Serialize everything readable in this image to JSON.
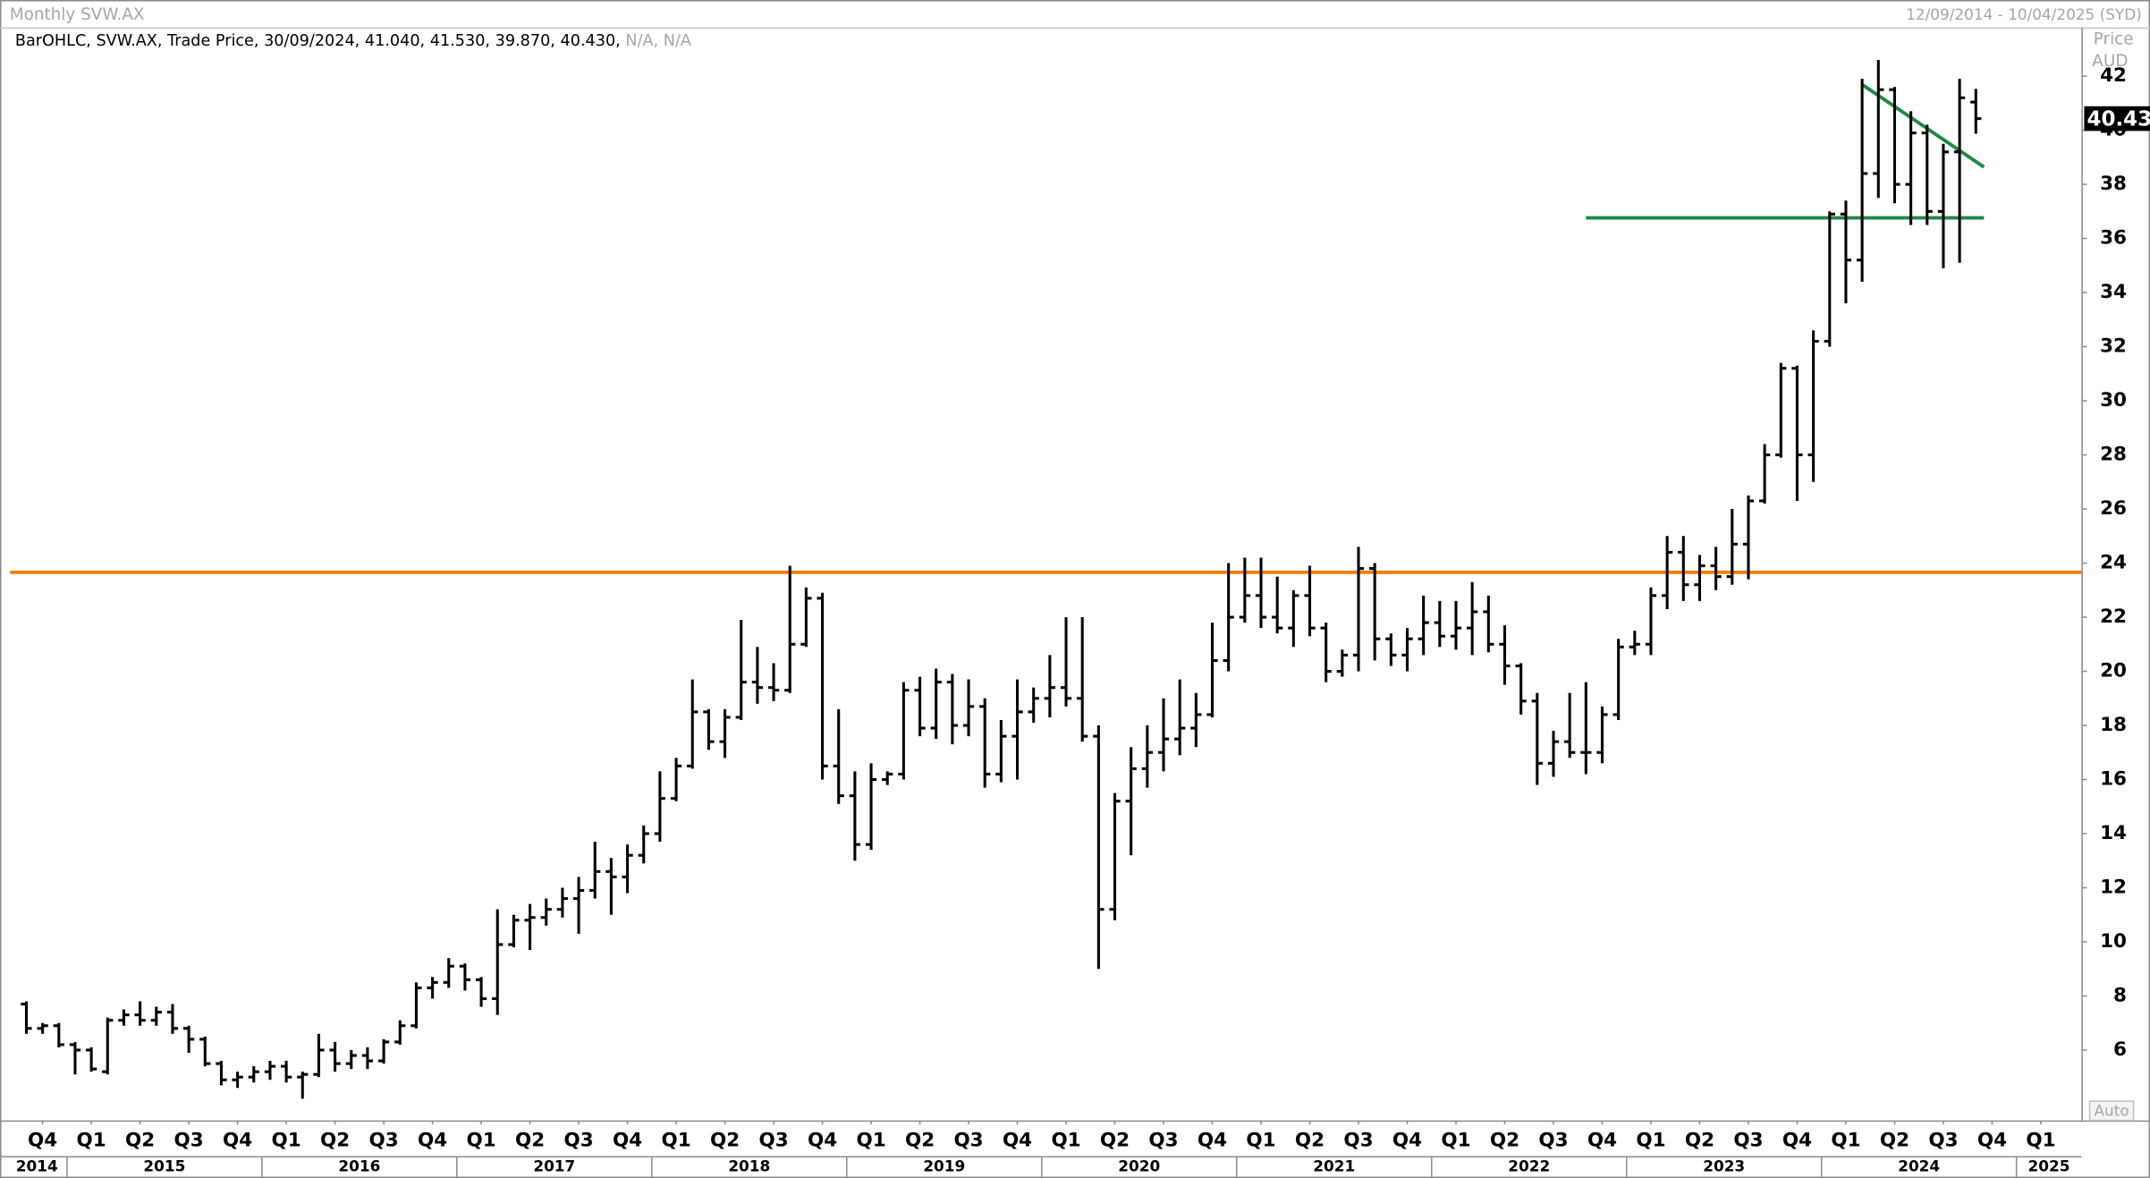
{
  "chart_data": {
    "type": "ohlc",
    "title": "Monthly SVW.AX",
    "date_range": "12/09/2014 - 10/04/2025 (SYD)",
    "legend_text": "BarOHLC, SVW.AX, Trade Price, 30/09/2024, 41.040, 41.530, 39.870, 40.430,",
    "legend_na": "N/A, N/A",
    "y_axis_label": "Price",
    "y_axis_unit": "AUD",
    "last_price_label": "40.43",
    "auto_button": "Auto",
    "color": "#000000",
    "grid": false,
    "xlim": [
      -1.2,
      126.5
    ],
    "ylim": [
      3.4,
      43.8
    ],
    "yticks": [
      6,
      8,
      10,
      12,
      14,
      16,
      18,
      20,
      22,
      24,
      26,
      28,
      30,
      32,
      34,
      36,
      38,
      40,
      42
    ],
    "xticks": [
      {
        "value": 1,
        "label": "Q4"
      },
      {
        "value": 4,
        "label": "Q1"
      },
      {
        "value": 7,
        "label": "Q2"
      },
      {
        "value": 10,
        "label": "Q3"
      },
      {
        "value": 13,
        "label": "Q4"
      },
      {
        "value": 16,
        "label": "Q1"
      },
      {
        "value": 19,
        "label": "Q2"
      },
      {
        "value": 22,
        "label": "Q3"
      },
      {
        "value": 25,
        "label": "Q4"
      },
      {
        "value": 28,
        "label": "Q1"
      },
      {
        "value": 31,
        "label": "Q2"
      },
      {
        "value": 34,
        "label": "Q3"
      },
      {
        "value": 37,
        "label": "Q4"
      },
      {
        "value": 40,
        "label": "Q1"
      },
      {
        "value": 43,
        "label": "Q2"
      },
      {
        "value": 46,
        "label": "Q3"
      },
      {
        "value": 49,
        "label": "Q4"
      },
      {
        "value": 52,
        "label": "Q1"
      },
      {
        "value": 55,
        "label": "Q2"
      },
      {
        "value": 58,
        "label": "Q3"
      },
      {
        "value": 61,
        "label": "Q4"
      },
      {
        "value": 64,
        "label": "Q1"
      },
      {
        "value": 67,
        "label": "Q2"
      },
      {
        "value": 70,
        "label": "Q3"
      },
      {
        "value": 73,
        "label": "Q4"
      },
      {
        "value": 76,
        "label": "Q1"
      },
      {
        "value": 79,
        "label": "Q2"
      },
      {
        "value": 82,
        "label": "Q3"
      },
      {
        "value": 85,
        "label": "Q4"
      },
      {
        "value": 88,
        "label": "Q1"
      },
      {
        "value": 91,
        "label": "Q2"
      },
      {
        "value": 94,
        "label": "Q3"
      },
      {
        "value": 97,
        "label": "Q4"
      },
      {
        "value": 100,
        "label": "Q1"
      },
      {
        "value": 103,
        "label": "Q2"
      },
      {
        "value": 106,
        "label": "Q3"
      },
      {
        "value": 109,
        "label": "Q4"
      },
      {
        "value": 112,
        "label": "Q1"
      },
      {
        "value": 115,
        "label": "Q2"
      },
      {
        "value": 118,
        "label": "Q3"
      },
      {
        "value": 121,
        "label": "Q4"
      },
      {
        "value": 124,
        "label": "Q1"
      }
    ],
    "year_ticks": [
      {
        "value": -9,
        "label": "2014"
      },
      {
        "value": 3,
        "label": "2015"
      },
      {
        "value": 15,
        "label": "2016"
      },
      {
        "value": 27,
        "label": "2017"
      },
      {
        "value": 39,
        "label": "2018"
      },
      {
        "value": 51,
        "label": "2019"
      },
      {
        "value": 63,
        "label": "2020"
      },
      {
        "value": 75,
        "label": "2021"
      },
      {
        "value": 87,
        "label": "2022"
      },
      {
        "value": 99,
        "label": "2023"
      },
      {
        "value": 111,
        "label": "2024"
      },
      {
        "value": 123,
        "label": "2025"
      }
    ],
    "open": [
      7.7,
      6.8,
      6.9,
      6.2,
      6.0,
      5.2,
      7.1,
      7.3,
      7.1,
      7.4,
      6.8,
      6.4,
      5.5,
      4.9,
      5.0,
      5.2,
      5.4,
      5.0,
      5.1,
      6.0,
      5.5,
      5.8,
      5.6,
      6.3,
      6.9,
      8.3,
      8.5,
      9.1,
      8.6,
      7.9,
      9.9,
      10.8,
      10.9,
      11.2,
      11.6,
      11.9,
      12.6,
      12.4,
      13.2,
      14.0,
      15.3,
      16.5,
      18.5,
      17.4,
      18.3,
      19.6,
      19.4,
      19.3,
      21.0,
      22.7,
      16.5,
      15.4,
      13.6,
      16.0,
      16.2,
      19.3,
      17.9,
      19.6,
      18.0,
      18.7,
      16.2,
      17.6,
      18.5,
      19.0,
      19.4,
      19.0,
      17.6,
      11.2,
      15.2,
      16.4,
      17.0,
      17.5,
      17.9,
      18.4,
      20.4,
      22.0,
      22.8,
      22.0,
      21.6,
      22.8,
      21.6,
      20.0,
      20.6,
      23.8,
      21.2,
      20.6,
      21.2,
      21.8,
      21.3,
      21.6,
      22.2,
      21.0,
      20.2,
      18.9,
      16.6,
      17.4,
      17.0,
      17.0,
      18.4,
      20.9,
      21.0,
      22.8,
      24.4,
      23.2,
      23.9,
      23.5,
      24.7,
      26.3,
      28.0,
      31.2,
      28.0,
      32.2,
      36.9,
      35.2,
      38.4,
      41.5,
      38.0,
      39.9,
      37.0,
      39.2,
      41.04
    ],
    "high": [
      7.8,
      7.0,
      7.0,
      6.3,
      6.1,
      7.2,
      7.5,
      7.8,
      7.6,
      7.7,
      6.9,
      6.5,
      5.6,
      5.2,
      5.4,
      5.6,
      5.6,
      5.2,
      6.6,
      6.3,
      6.0,
      6.1,
      6.4,
      7.1,
      8.5,
      8.7,
      9.4,
      9.2,
      8.7,
      11.2,
      11.0,
      11.4,
      11.6,
      12.0,
      12.4,
      13.7,
      13.1,
      13.6,
      14.3,
      16.3,
      16.8,
      19.7,
      18.6,
      18.6,
      21.9,
      20.9,
      20.3,
      23.9,
      23.1,
      22.9,
      18.6,
      16.3,
      16.6,
      16.3,
      19.6,
      19.8,
      20.1,
      19.9,
      19.7,
      19.0,
      18.2,
      19.7,
      19.4,
      20.6,
      22.0,
      22.0,
      18.0,
      15.5,
      17.2,
      18.0,
      19.0,
      19.7,
      19.2,
      21.8,
      24.0,
      24.2,
      24.2,
      23.5,
      23.0,
      23.9,
      21.8,
      20.8,
      24.6,
      24.0,
      21.4,
      21.6,
      22.8,
      22.6,
      22.6,
      23.3,
      22.8,
      21.7,
      20.3,
      19.2,
      17.8,
      19.2,
      19.6,
      18.7,
      21.2,
      21.5,
      23.1,
      25.0,
      25.0,
      24.3,
      24.6,
      26.0,
      26.5,
      28.4,
      31.4,
      31.3,
      32.6,
      37.0,
      37.4,
      41.9,
      42.6,
      41.6,
      40.7,
      40.2,
      39.5,
      41.9,
      41.53
    ],
    "low": [
      6.6,
      6.6,
      6.1,
      5.1,
      5.2,
      5.1,
      6.9,
      6.9,
      6.9,
      6.6,
      5.9,
      5.4,
      4.7,
      4.6,
      4.8,
      4.9,
      4.8,
      4.2,
      5.0,
      5.2,
      5.3,
      5.3,
      5.5,
      6.2,
      6.8,
      7.9,
      8.3,
      8.2,
      7.6,
      7.3,
      9.8,
      9.7,
      10.6,
      10.9,
      10.3,
      11.6,
      11.0,
      11.8,
      12.9,
      13.7,
      15.2,
      16.4,
      17.1,
      16.8,
      18.2,
      18.8,
      18.9,
      19.2,
      20.9,
      16.0,
      15.1,
      13.0,
      13.4,
      15.8,
      16.0,
      17.6,
      17.5,
      17.3,
      17.6,
      15.7,
      15.9,
      16.0,
      18.1,
      18.3,
      18.7,
      17.4,
      9.0,
      10.8,
      13.2,
      15.7,
      16.3,
      16.9,
      17.2,
      18.3,
      20.0,
      21.8,
      21.6,
      21.4,
      20.9,
      21.3,
      19.6,
      19.8,
      20.0,
      20.4,
      20.2,
      20.0,
      20.6,
      20.9,
      20.8,
      20.6,
      20.7,
      19.5,
      18.4,
      15.8,
      16.1,
      16.8,
      16.2,
      16.6,
      18.2,
      20.6,
      20.6,
      22.3,
      22.6,
      22.6,
      23.0,
      23.2,
      23.4,
      26.2,
      27.9,
      26.3,
      27.0,
      32.0,
      33.6,
      34.4,
      37.5,
      37.3,
      36.5,
      36.5,
      34.9,
      35.1,
      39.87
    ],
    "close": [
      6.8,
      6.9,
      6.2,
      6.0,
      5.3,
      7.1,
      7.3,
      7.1,
      7.4,
      6.8,
      6.4,
      5.5,
      4.9,
      5.0,
      5.2,
      5.4,
      5.0,
      5.1,
      6.0,
      5.5,
      5.8,
      5.6,
      6.3,
      6.9,
      8.3,
      8.5,
      9.1,
      8.6,
      7.9,
      9.9,
      10.8,
      10.9,
      11.2,
      11.6,
      11.9,
      12.6,
      12.4,
      13.2,
      14.0,
      15.3,
      16.5,
      18.5,
      17.4,
      18.3,
      19.6,
      19.4,
      19.3,
      21.0,
      22.7,
      16.5,
      15.4,
      13.6,
      16.0,
      16.2,
      19.3,
      17.9,
      19.6,
      18.0,
      18.7,
      16.2,
      17.6,
      18.5,
      19.0,
      19.4,
      19.0,
      17.6,
      11.2,
      15.2,
      16.4,
      17.0,
      17.5,
      17.9,
      18.4,
      20.4,
      22.0,
      22.8,
      22.0,
      21.6,
      22.8,
      21.6,
      20.0,
      20.6,
      23.8,
      21.2,
      20.6,
      21.2,
      21.8,
      21.3,
      21.6,
      22.2,
      21.0,
      20.2,
      18.9,
      16.6,
      17.4,
      17.0,
      17.0,
      18.4,
      20.9,
      21.0,
      22.8,
      24.4,
      23.2,
      23.9,
      23.5,
      24.7,
      26.3,
      28.0,
      31.2,
      28.0,
      32.2,
      36.9,
      35.2,
      38.4,
      41.5,
      38.0,
      39.9,
      37.0,
      39.2,
      41.2,
      40.43
    ],
    "lines": [
      {
        "color": "#f07f09",
        "x": [
          -1,
          126.5
        ],
        "y": [
          23.66,
          23.66
        ]
      },
      {
        "color": "#1e8a46",
        "x": [
          96,
          120.5
        ],
        "y": [
          36.76,
          36.76
        ]
      },
      {
        "color": "#1e8a46",
        "x": [
          113,
          120.5
        ],
        "y": [
          41.69,
          38.64
        ]
      }
    ]
  }
}
